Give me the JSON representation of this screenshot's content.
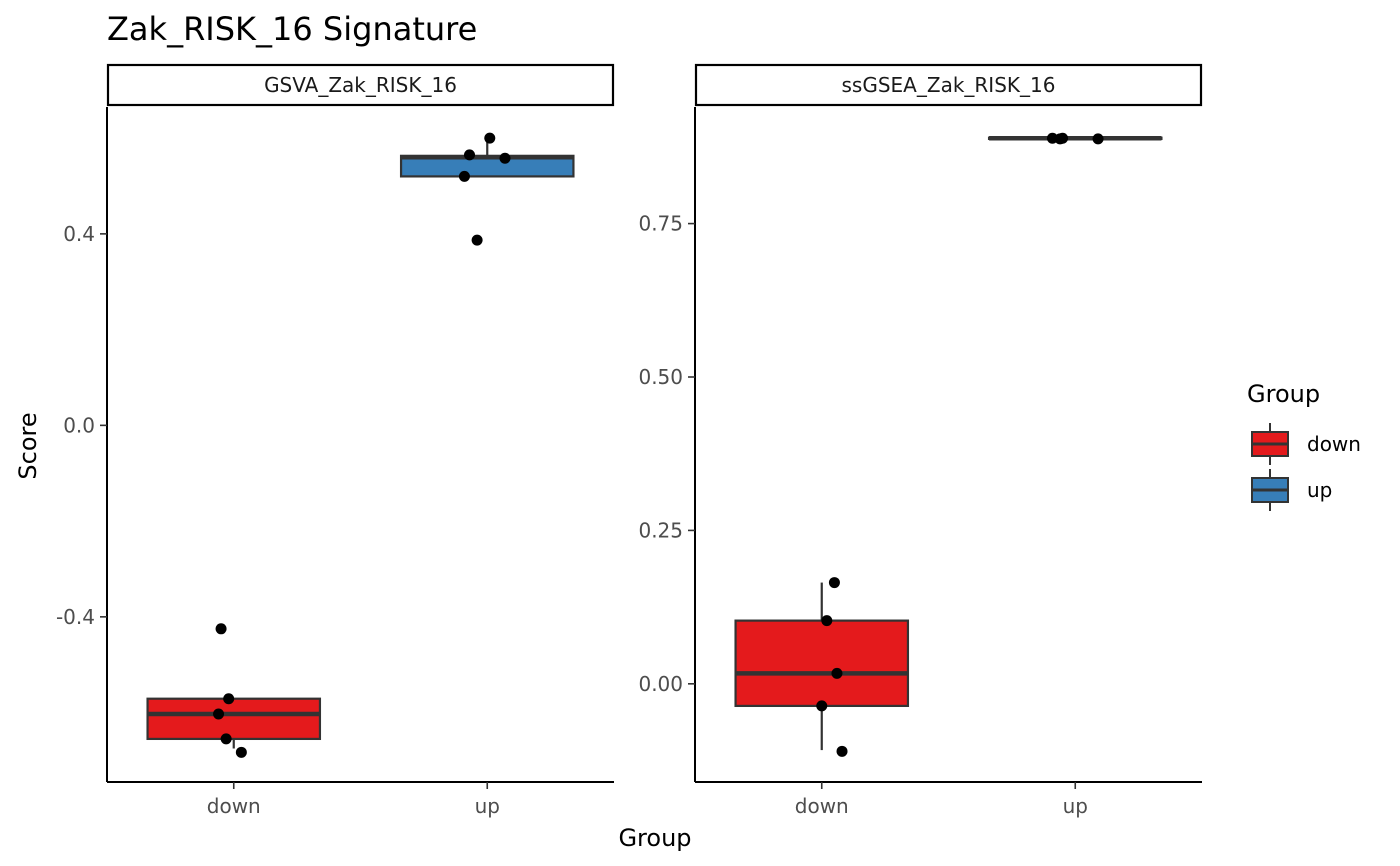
{
  "title": "Zak_RISK_16 Signature",
  "xlabel": "Group",
  "ylabel": "Score",
  "legend": {
    "title": "Group",
    "position": "right",
    "items": [
      {
        "label": "down",
        "color": "#E41A1C"
      },
      {
        "label": "up",
        "color": "#377EB8"
      }
    ]
  },
  "chart_data": [
    {
      "type": "box",
      "facet": "GSVA_Zak_RISK_16",
      "categories": [
        "down",
        "up"
      ],
      "ylim": [
        -0.745,
        0.665
      ],
      "yticks": [
        -0.4,
        0.0,
        0.4
      ],
      "ytick_labels": [
        "-0.4",
        "0.0",
        "0.4"
      ],
      "grid": false,
      "boxes": [
        {
          "group": "down",
          "color": "#E41A1C",
          "min": -0.675,
          "q1": -0.655,
          "median": -0.603,
          "q3": -0.571,
          "max": -0.42,
          "whisker_low": -0.675,
          "whisker_high": -0.571
        },
        {
          "group": "up",
          "color": "#377EB8",
          "min": 0.39,
          "q1": 0.52,
          "median": 0.56,
          "q3": 0.563,
          "max": 0.6,
          "whisker_low": 0.52,
          "whisker_high": 0.6
        }
      ],
      "points": [
        {
          "group": "down",
          "x_offset": -0.05,
          "y": -0.425
        },
        {
          "group": "down",
          "x_offset": -0.02,
          "y": -0.571
        },
        {
          "group": "down",
          "x_offset": -0.06,
          "y": -0.603
        },
        {
          "group": "down",
          "x_offset": -0.03,
          "y": -0.655
        },
        {
          "group": "down",
          "x_offset": 0.03,
          "y": -0.683
        },
        {
          "group": "up",
          "x_offset": 0.01,
          "y": 0.6
        },
        {
          "group": "up",
          "x_offset": -0.07,
          "y": 0.565
        },
        {
          "group": "up",
          "x_offset": 0.07,
          "y": 0.558
        },
        {
          "group": "up",
          "x_offset": -0.09,
          "y": 0.52
        },
        {
          "group": "up",
          "x_offset": -0.04,
          "y": 0.387
        }
      ]
    },
    {
      "type": "box",
      "facet": "ssGSEA_Zak_RISK_16",
      "categories": [
        "down",
        "up"
      ],
      "ylim": [
        -0.16,
        0.94
      ],
      "yticks": [
        0.0,
        0.25,
        0.5,
        0.75
      ],
      "ytick_labels": [
        "0.00",
        "0.25",
        "0.50",
        "0.75"
      ],
      "grid": false,
      "boxes": [
        {
          "group": "down",
          "color": "#E41A1C",
          "q1": -0.036,
          "median": 0.017,
          "q3": 0.103,
          "whisker_low": -0.108,
          "whisker_high": 0.165
        },
        {
          "group": "up",
          "color": "#377EB8",
          "q1": 0.888,
          "median": 0.889,
          "q3": 0.89,
          "whisker_low": 0.887,
          "whisker_high": 0.891
        }
      ],
      "points": [
        {
          "group": "down",
          "x_offset": 0.05,
          "y": 0.165
        },
        {
          "group": "down",
          "x_offset": 0.02,
          "y": 0.103
        },
        {
          "group": "down",
          "x_offset": 0.06,
          "y": 0.017
        },
        {
          "group": "down",
          "x_offset": 0.0,
          "y": -0.036
        },
        {
          "group": "down",
          "x_offset": 0.08,
          "y": -0.11
        },
        {
          "group": "up",
          "x_offset": -0.09,
          "y": 0.889
        },
        {
          "group": "up",
          "x_offset": -0.06,
          "y": 0.888
        },
        {
          "group": "up",
          "x_offset": -0.05,
          "y": 0.889
        },
        {
          "group": "up",
          "x_offset": 0.09,
          "y": 0.888
        }
      ]
    }
  ]
}
